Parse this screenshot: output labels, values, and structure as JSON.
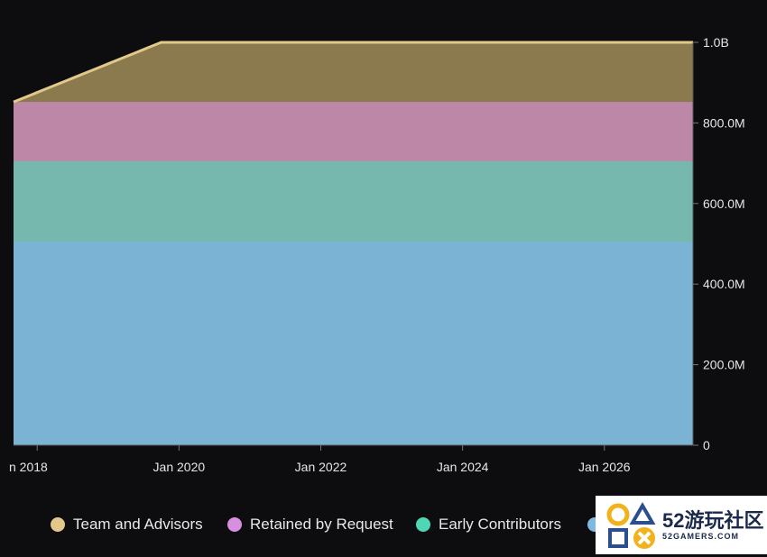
{
  "chart_data": {
    "type": "area",
    "stacked": true,
    "x_tick_labels": [
      "n 2018",
      "Jan 2020",
      "Jan 2022",
      "Jan 2024",
      "Jan 2026"
    ],
    "y_tick_labels": [
      "0",
      "200.0M",
      "400.0M",
      "600.0M",
      "800.0M",
      "1.0B"
    ],
    "ylim": [
      0,
      1000000000
    ],
    "xlim": [
      "2017-09",
      "2027-04"
    ],
    "series": [
      {
        "name": "",
        "color": "#7ab3d4",
        "x": [
          "2017-09",
          "2027-04"
        ],
        "values": [
          505000000,
          505000000
        ]
      },
      {
        "name": "Early Contributors",
        "color": "#76b8ae",
        "x": [
          "2017-09",
          "2027-04"
        ],
        "values": [
          200000000,
          200000000
        ]
      },
      {
        "name": "Retained by Request",
        "color": "#bd88a8",
        "x": [
          "2017-09",
          "2027-04"
        ],
        "values": [
          147000000,
          147000000
        ]
      },
      {
        "name": "Team and Advisors",
        "color": "#8a7a4e",
        "x": [
          "2017-09",
          "2019-10",
          "2027-04"
        ],
        "values": [
          0,
          148000000,
          148000000
        ]
      }
    ],
    "legend_position": "bottom",
    "grid": false
  },
  "legend": {
    "items": [
      {
        "label": "Team and Advisors",
        "color": "#e2c98a"
      },
      {
        "label": "Retained by Request",
        "color": "#d98fdf"
      },
      {
        "label": "Early Contributors",
        "color": "#4fd6b4"
      },
      {
        "label": "",
        "color": "#7fb8e0"
      }
    ]
  },
  "watermark": {
    "title": "52游玩社区",
    "subtitle": "52GAMERS.COM"
  }
}
